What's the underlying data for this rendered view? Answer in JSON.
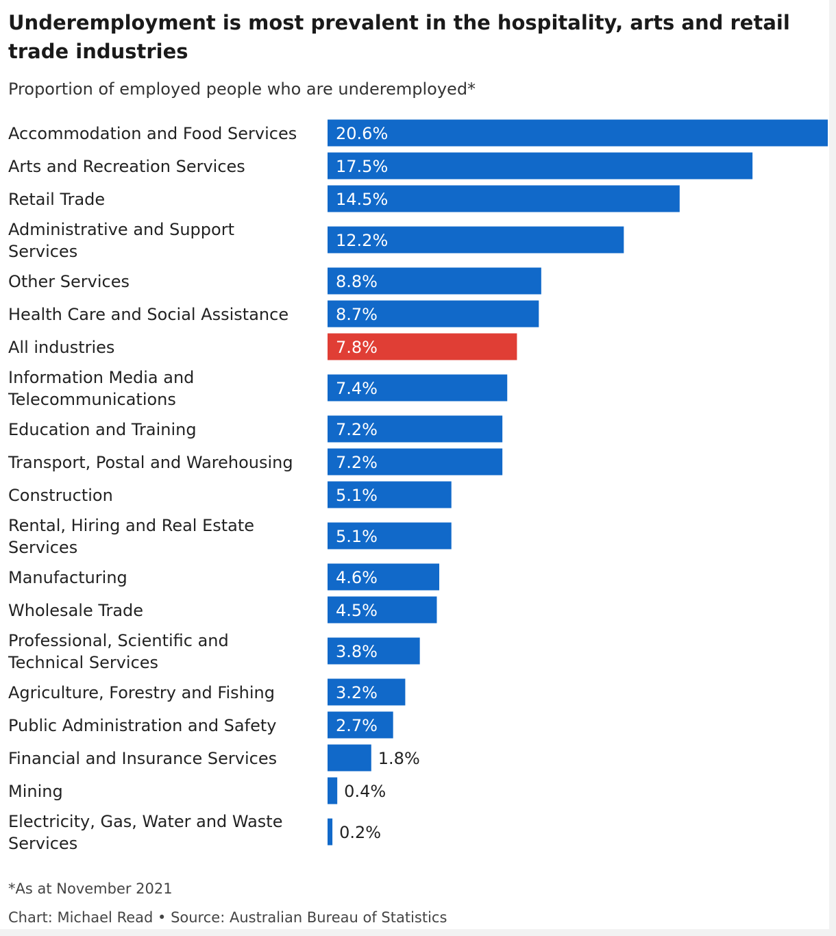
{
  "title": "Underemployment is most prevalent in the hospitality, arts and retail trade industries",
  "subtitle": "Proportion of employed people who are underemployed*",
  "footnote": "*As at November 2021",
  "credit": "Chart: Michael Read • Source: Australian Bureau of Statistics",
  "colors": {
    "bar": "#1169c9",
    "highlight": "#e03e35",
    "label_inside": "#ffffff",
    "label_outside": "#222222"
  },
  "chart_data": {
    "type": "bar",
    "orientation": "horizontal",
    "value_unit": "%",
    "xlim": [
      0,
      20.6
    ],
    "categories": [
      [
        "Accommodation and Food Services"
      ],
      [
        "Arts and Recreation Services"
      ],
      [
        "Retail Trade"
      ],
      [
        "Administrative and Support",
        "Services"
      ],
      [
        "Other Services"
      ],
      [
        "Health Care and Social Assistance"
      ],
      [
        "All industries"
      ],
      [
        "Information Media and",
        "Telecommunications"
      ],
      [
        "Education and Training"
      ],
      [
        "Transport, Postal and Warehousing"
      ],
      [
        "Construction"
      ],
      [
        "Rental, Hiring and Real Estate",
        "Services"
      ],
      [
        "Manufacturing"
      ],
      [
        "Wholesale Trade"
      ],
      [
        "Professional, Scientific and",
        "Technical Services"
      ],
      [
        "Agriculture, Forestry and Fishing"
      ],
      [
        "Public Administration and Safety"
      ],
      [
        "Financial and Insurance Services"
      ],
      [
        "Mining"
      ],
      [
        "Electricity, Gas, Water and Waste",
        "Services"
      ]
    ],
    "values": [
      20.6,
      17.5,
      14.5,
      12.2,
      8.8,
      8.7,
      7.8,
      7.4,
      7.2,
      7.2,
      5.1,
      5.1,
      4.6,
      4.5,
      3.8,
      3.2,
      2.7,
      1.8,
      0.4,
      0.2
    ],
    "value_labels": [
      "20.6%",
      "17.5%",
      "14.5%",
      "12.2%",
      "8.8%",
      "8.7%",
      "7.8%",
      "7.4%",
      "7.2%",
      "7.2%",
      "5.1%",
      "5.1%",
      "4.6%",
      "4.5%",
      "3.8%",
      "3.2%",
      "2.7%",
      "1.8%",
      "0.4%",
      "0.2%"
    ],
    "highlight_category": "All industries"
  }
}
